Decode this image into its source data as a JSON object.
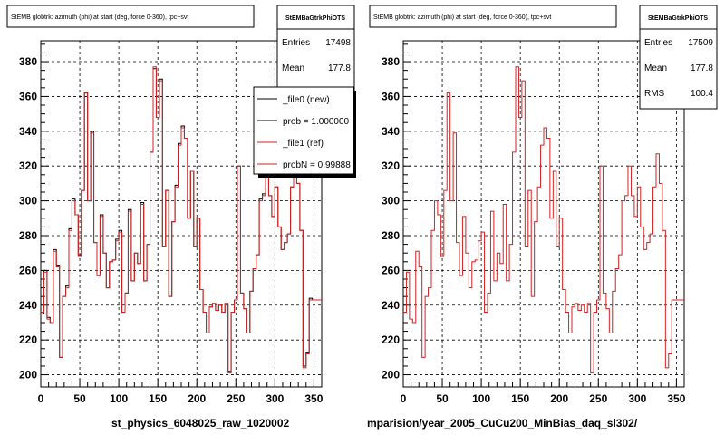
{
  "chart_data": [
    {
      "type": "line",
      "title": "StEMB globtrk: azimuth (phi) at start (deg, force 0-360), tpc+svt",
      "xlabel": "st_physics_6048025_raw_1020002",
      "ylabel": "",
      "xlim": [
        0,
        360
      ],
      "ylim": [
        193,
        392
      ],
      "x_ticks": [
        "0",
        "50",
        "100",
        "150",
        "200",
        "250",
        "300",
        "350"
      ],
      "y_ticks": [
        "200",
        "220",
        "240",
        "260",
        "280",
        "300",
        "320",
        "340",
        "360",
        "380"
      ],
      "grid": true,
      "stats_box": {
        "title": "StEMBaGtrkPhiOTS",
        "rows": [
          {
            "label": "Entries",
            "value": "17498"
          },
          {
            "label": "Mean",
            "value": "177.8"
          }
        ]
      },
      "legend": {
        "placement": "top-right",
        "entries": [
          "_file0 (new)",
          "prob = 1.000000",
          "_file1 (ref)",
          "probN = 0.99888"
        ]
      },
      "series": [
        {
          "name": "_file0 (new)",
          "color": "#000000",
          "x": [
            0,
            4,
            8,
            12,
            16,
            20,
            24,
            28,
            32,
            36,
            40,
            44,
            48,
            52,
            56,
            60,
            64,
            68,
            72,
            76,
            80,
            84,
            88,
            92,
            96,
            100,
            104,
            108,
            112,
            116,
            120,
            124,
            128,
            132,
            136,
            140,
            144,
            148,
            152,
            156,
            160,
            164,
            168,
            172,
            176,
            180,
            184,
            188,
            192,
            196,
            200,
            204,
            208,
            212,
            216,
            220,
            224,
            228,
            232,
            236,
            240,
            244,
            248,
            252,
            256,
            260,
            264,
            268,
            272,
            276,
            280,
            284,
            288,
            292,
            296,
            300,
            304,
            308,
            312,
            316,
            320,
            324,
            328,
            332,
            336,
            340,
            344,
            348,
            352,
            356
          ],
          "values": [
            235,
            260,
            233,
            230,
            272,
            263,
            210,
            245,
            251,
            284,
            301,
            292,
            269,
            306,
            362,
            300,
            340,
            276,
            257,
            292,
            270,
            250,
            265,
            266,
            278,
            283,
            236,
            247,
            295,
            254,
            270,
            264,
            299,
            254,
            275,
            328,
            376,
            348,
            370,
            274,
            306,
            245,
            288,
            309,
            333,
            343,
            336,
            290,
            317,
            274,
            290,
            249,
            236,
            224,
            239,
            241,
            237,
            240,
            236,
            241,
            202,
            236,
            243,
            320,
            247,
            238,
            224,
            248,
            261,
            269,
            301,
            304,
            320,
            303,
            291,
            308,
            285,
            272,
            276,
            281,
            308,
            327,
            310,
            283,
            205,
            213,
            244,
            243,
            243,
            243
          ]
        },
        {
          "name": "_file1 (ref)",
          "color": "#d42020",
          "x": [
            0,
            4,
            8,
            12,
            16,
            20,
            24,
            28,
            32,
            36,
            40,
            44,
            48,
            52,
            56,
            60,
            64,
            68,
            72,
            76,
            80,
            84,
            88,
            92,
            96,
            100,
            104,
            108,
            112,
            116,
            120,
            124,
            128,
            132,
            136,
            140,
            144,
            148,
            152,
            156,
            160,
            164,
            168,
            172,
            176,
            180,
            184,
            188,
            192,
            196,
            200,
            204,
            208,
            212,
            216,
            220,
            224,
            228,
            232,
            236,
            240,
            244,
            248,
            252,
            256,
            260,
            264,
            268,
            272,
            276,
            280,
            284,
            288,
            292,
            296,
            300,
            304,
            308,
            312,
            316,
            320,
            324,
            328,
            332,
            336,
            340,
            344,
            348,
            352,
            356
          ],
          "values": [
            236,
            259,
            232,
            230,
            271,
            262,
            210,
            245,
            250,
            283,
            300,
            292,
            268,
            306,
            362,
            300,
            339,
            276,
            257,
            291,
            270,
            250,
            265,
            266,
            277,
            282,
            236,
            247,
            294,
            254,
            270,
            264,
            298,
            254,
            275,
            328,
            377,
            348,
            369,
            274,
            306,
            245,
            288,
            308,
            332,
            342,
            336,
            290,
            317,
            274,
            290,
            249,
            236,
            224,
            239,
            241,
            237,
            240,
            236,
            241,
            201,
            236,
            243,
            320,
            247,
            238,
            224,
            248,
            261,
            269,
            300,
            303,
            320,
            303,
            291,
            308,
            285,
            272,
            276,
            281,
            308,
            327,
            310,
            283,
            204,
            212,
            243,
            243,
            243,
            243
          ]
        }
      ]
    },
    {
      "type": "line",
      "title": "StEMB globtrk: azimuth (phi) at start (deg, force 0-360), tpc+svt",
      "xlabel": "mparision/year_2005_CuCu200_MinBias_daq_sl302/",
      "ylabel": "",
      "xlim": [
        0,
        360
      ],
      "ylim": [
        193,
        392
      ],
      "x_ticks": [
        "0",
        "50",
        "100",
        "150",
        "200",
        "250",
        "300",
        "350"
      ],
      "y_ticks": [
        "200",
        "220",
        "240",
        "260",
        "280",
        "300",
        "320",
        "340",
        "360",
        "380"
      ],
      "grid": true,
      "stats_box": {
        "title": "StEMBaGtrkPhiOTS",
        "rows": [
          {
            "label": "Entries",
            "value": "17509"
          },
          {
            "label": "Mean",
            "value": "177.8"
          },
          {
            "label": "RMS",
            "value": "100.4"
          }
        ]
      },
      "series": [
        {
          "name": "",
          "color": "#d42020",
          "x": [
            0,
            4,
            8,
            12,
            16,
            20,
            24,
            28,
            32,
            36,
            40,
            44,
            48,
            52,
            56,
            60,
            64,
            68,
            72,
            76,
            80,
            84,
            88,
            92,
            96,
            100,
            104,
            108,
            112,
            116,
            120,
            124,
            128,
            132,
            136,
            140,
            144,
            148,
            152,
            156,
            160,
            164,
            168,
            172,
            176,
            180,
            184,
            188,
            192,
            196,
            200,
            204,
            208,
            212,
            216,
            220,
            224,
            228,
            232,
            236,
            240,
            244,
            248,
            252,
            256,
            260,
            264,
            268,
            272,
            276,
            280,
            284,
            288,
            292,
            296,
            300,
            304,
            308,
            312,
            316,
            320,
            324,
            328,
            332,
            336,
            340,
            344,
            348,
            352,
            356
          ],
          "values": [
            236,
            259,
            232,
            230,
            271,
            262,
            210,
            245,
            250,
            283,
            300,
            292,
            268,
            306,
            362,
            300,
            339,
            276,
            257,
            291,
            270,
            250,
            265,
            266,
            277,
            282,
            236,
            247,
            294,
            254,
            270,
            264,
            298,
            254,
            275,
            328,
            377,
            348,
            369,
            274,
            306,
            245,
            288,
            308,
            332,
            342,
            336,
            290,
            317,
            274,
            290,
            249,
            236,
            224,
            239,
            241,
            237,
            240,
            236,
            241,
            201,
            236,
            243,
            320,
            247,
            238,
            224,
            248,
            261,
            269,
            300,
            303,
            320,
            303,
            291,
            308,
            285,
            272,
            276,
            281,
            308,
            327,
            310,
            283,
            204,
            212,
            243,
            243,
            243,
            243
          ]
        }
      ]
    }
  ],
  "footer": {
    "left_caption": "st_physics_6048025_raw_1020002",
    "right_caption": "mparision/year_2005_CuCu200_MinBias_daq_sl302/"
  }
}
